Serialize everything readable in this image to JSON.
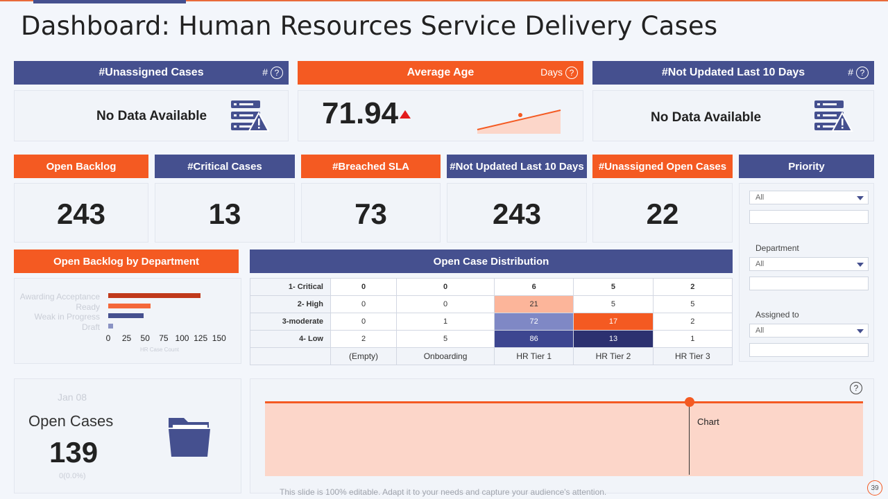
{
  "title": "Dashboard: Human Resources Service Delivery Cases",
  "top_cards": [
    {
      "header": "#Unassigned Cases",
      "unit": "#",
      "body": "No Data Available"
    },
    {
      "header": "Average Age",
      "unit": "Days",
      "value": "71.94"
    },
    {
      "header": "#Not  Updated Last 10 Days",
      "unit": "#",
      "body": "No Data Available"
    }
  ],
  "kpis": [
    {
      "label": "Open Backlog",
      "value": "243"
    },
    {
      "label": "#Critical Cases",
      "value": "13"
    },
    {
      "label": "#Breached SLA",
      "value": "73"
    },
    {
      "label": "#Not Updated Last 10 Days",
      "value": "243"
    },
    {
      "label": "#Unassigned Open Cases",
      "value": "22"
    }
  ],
  "filters": {
    "header": "Priority",
    "priority_value": "All",
    "department_label": "Department",
    "department_value": "All",
    "assigned_label": "Assigned to",
    "assigned_value": "All"
  },
  "backlog_by_dept": {
    "header": "Open Backlog by Department",
    "xlabel": "HR Case Count"
  },
  "distribution": {
    "header": "Open Case Distribution",
    "rows": [
      {
        "label": "1- Critical",
        "cells": [
          "0",
          "0",
          "6",
          "5",
          "2"
        ]
      },
      {
        "label": "2- High",
        "cells": [
          "0",
          "0",
          "21",
          "5",
          "5"
        ]
      },
      {
        "label": "3-moderate",
        "cells": [
          "0",
          "1",
          "72",
          "17",
          "2"
        ]
      },
      {
        "label": "4- Low",
        "cells": [
          "2",
          "5",
          "86",
          "13",
          "1"
        ]
      }
    ],
    "columns": [
      "(Empty)",
      "Onboarding",
      "HR Tier 1",
      "HR Tier 2",
      "HR Tier 3"
    ]
  },
  "open_cases": {
    "date": "Jan 08",
    "label": "Open Cases",
    "value": "139",
    "change": "0(0.0%)"
  },
  "trend": {
    "label": "Chart"
  },
  "footer": "This slide is 100% editable. Adapt it to your needs and capture your audience's attention.",
  "page_number": "39",
  "chart_data": {
    "type": "bar",
    "orientation": "horizontal",
    "categories": [
      "Awarding Acceptance",
      "Ready",
      "Weak in Progress",
      "Draft"
    ],
    "values": [
      125,
      57,
      48,
      7
    ],
    "colors": [
      "#c0391b",
      "#f4683a",
      "#45508f",
      "#8a93c4"
    ],
    "xlabel": "HR Case Count",
    "xlim": [
      0,
      150
    ],
    "xticks": [
      "0",
      "25",
      "50",
      "75",
      "100",
      "125",
      "150"
    ]
  },
  "colors": {
    "blue": "#45508f",
    "orange": "#f45a22"
  }
}
